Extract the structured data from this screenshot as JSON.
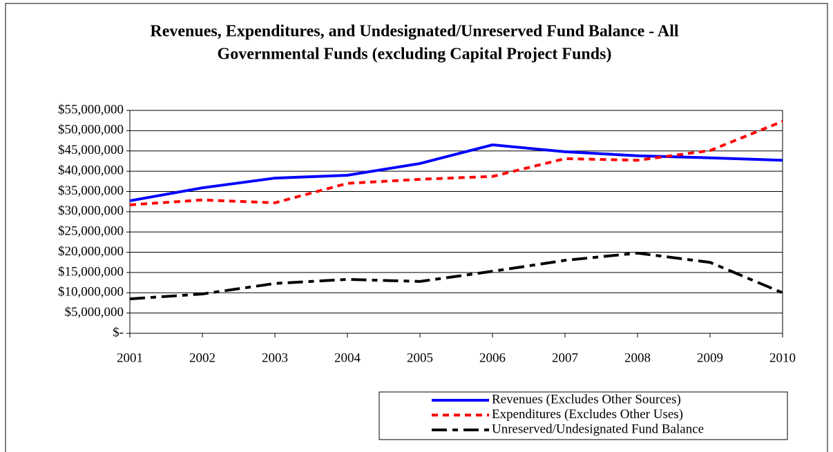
{
  "chart_data": {
    "type": "line",
    "title": [
      "Revenues, Expenditures, and Undesignated/Unreserved Fund Balance - All",
      "Governmental Funds (excluding Capital Project Funds)"
    ],
    "categories": [
      "2001",
      "2002",
      "2003",
      "2004",
      "2005",
      "2006",
      "2007",
      "2008",
      "2009",
      "2010"
    ],
    "series": [
      {
        "name": "Revenues (Excludes Other Sources)",
        "color": "#0000ff",
        "dash": "solid",
        "values": [
          32700000,
          35900000,
          38300000,
          39000000,
          41900000,
          46500000,
          44800000,
          43800000,
          43300000,
          42700000
        ]
      },
      {
        "name": "Expenditures (Excludes Other Uses)",
        "color": "#ff0000",
        "dash": "dotted",
        "values": [
          31700000,
          32900000,
          32200000,
          37000000,
          38000000,
          38700000,
          43100000,
          42700000,
          45100000,
          52300000
        ]
      },
      {
        "name": "Unreserved/Undesignated Fund Balance",
        "color": "#000000",
        "dash": "dashed",
        "values": [
          8500000,
          9700000,
          12300000,
          13300000,
          12800000,
          15300000,
          18000000,
          19800000,
          17500000,
          10000000
        ]
      }
    ],
    "ylim": [
      0,
      55000000
    ],
    "yticks": [
      {
        "value": 0,
        "label": "$-"
      },
      {
        "value": 5000000,
        "label": "$5,000,000"
      },
      {
        "value": 10000000,
        "label": "$10,000,000"
      },
      {
        "value": 15000000,
        "label": "$15,000,000"
      },
      {
        "value": 20000000,
        "label": "$20,000,000"
      },
      {
        "value": 25000000,
        "label": "$25,000,000"
      },
      {
        "value": 30000000,
        "label": "$30,000,000"
      },
      {
        "value": 35000000,
        "label": "$35,000,000"
      },
      {
        "value": 40000000,
        "label": "$40,000,000"
      },
      {
        "value": 45000000,
        "label": "$45,000,000"
      },
      {
        "value": 50000000,
        "label": "$50,000,000"
      },
      {
        "value": 55000000,
        "label": "$55,000,000"
      }
    ],
    "grid": true,
    "legend": "bottom-right"
  }
}
